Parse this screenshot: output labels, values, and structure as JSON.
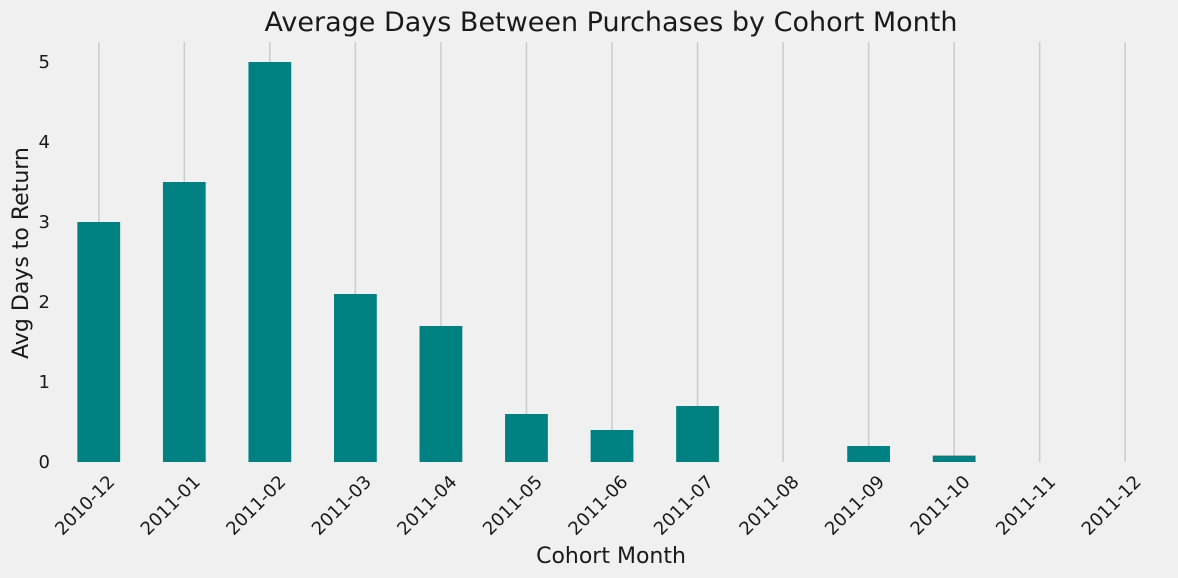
{
  "chart_data": {
    "type": "bar",
    "title": "Average Days Between Purchases by Cohort Month",
    "xlabel": "Cohort Month",
    "ylabel": "Avg Days to Return",
    "categories": [
      "2010-12",
      "2011-01",
      "2011-02",
      "2011-03",
      "2011-04",
      "2011-05",
      "2011-06",
      "2011-07",
      "2011-08",
      "2011-09",
      "2011-10",
      "2011-11",
      "2011-12"
    ],
    "values": [
      3.0,
      3.5,
      5.0,
      2.1,
      1.7,
      0.6,
      0.4,
      0.7,
      0.0,
      0.2,
      0.08,
      0.0,
      0.0
    ],
    "ylim": [
      0,
      5.25
    ],
    "yticks": [
      0,
      1,
      2,
      3,
      4,
      5
    ],
    "grid": "vertical",
    "legend": "none",
    "bar_color": "#008080",
    "grid_color": "#cbcbcb",
    "background": "#f0f0f0"
  }
}
